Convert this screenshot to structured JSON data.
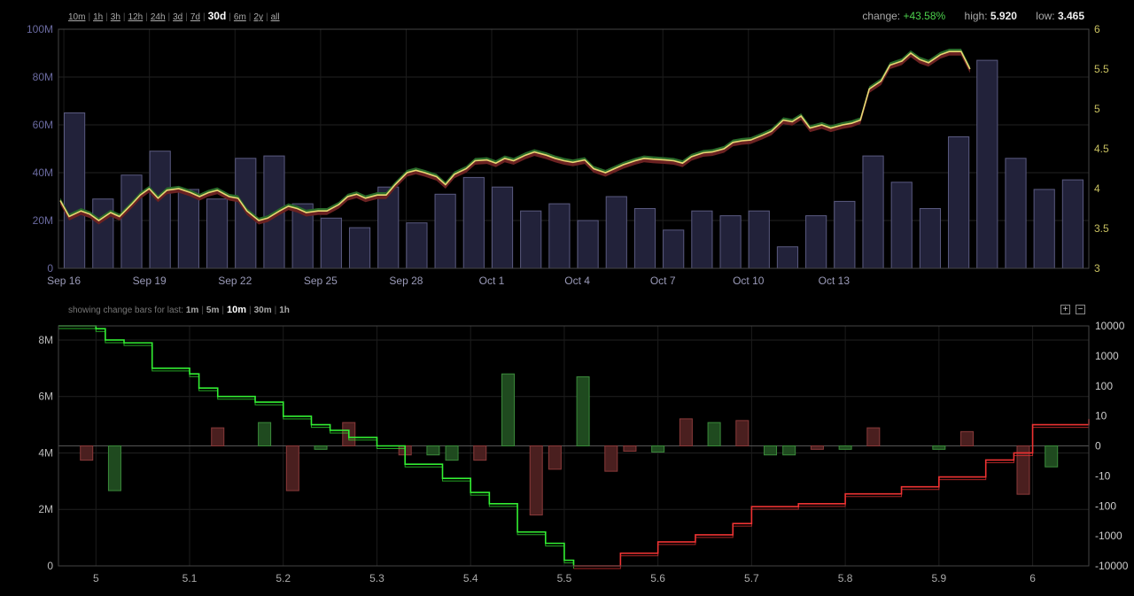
{
  "range_selector": {
    "options": [
      "10m",
      "1h",
      "3h",
      "12h",
      "24h",
      "3d",
      "7d",
      "30d",
      "6m",
      "2y",
      "all"
    ],
    "active": "30d"
  },
  "stats": {
    "change_label": "change:",
    "change_value": "+43.58%",
    "high_label": "high:",
    "high_value": "5.920",
    "low_label": "low:",
    "low_value": "3.465"
  },
  "change_bars": {
    "label": "showing change bars for last:",
    "options": [
      "1m",
      "5m",
      "10m",
      "30m",
      "1h"
    ],
    "active": "10m"
  },
  "zoom": {
    "in_label": "+",
    "out_label": "−"
  },
  "colors": {
    "up": "#2a6b2a",
    "down": "#6b2222",
    "volume_fill": "#22223a",
    "volume_stroke": "#5a5a80",
    "price_line": "#e8d874",
    "bid": "#33ee33",
    "ask": "#ee3333"
  },
  "chart_data": [
    {
      "type": "line",
      "ylim_left": [
        0,
        100
      ],
      "ylim_right": [
        3,
        6
      ],
      "yticks_left": [
        "0",
        "20M",
        "40M",
        "60M",
        "80M",
        "100M"
      ],
      "yticks_right": [
        "3",
        "3.5",
        "4",
        "4.5",
        "5",
        "5.5",
        "6"
      ],
      "xticks": [
        {
          "label": "Sep 16",
          "day": 0
        },
        {
          "label": "Sep 19",
          "day": 3
        },
        {
          "label": "Sep 22",
          "day": 6
        },
        {
          "label": "Sep 25",
          "day": 9
        },
        {
          "label": "Sep 28",
          "day": 12
        },
        {
          "label": "Oct 1",
          "day": 15
        },
        {
          "label": "Oct 4",
          "day": 18
        },
        {
          "label": "Oct 7",
          "day": 21
        },
        {
          "label": "Oct 10",
          "day": 24
        },
        {
          "label": "Oct 13",
          "day": 27
        }
      ],
      "volume_M": [
        65,
        29,
        39,
        49,
        33,
        29,
        46,
        47,
        27,
        21,
        17,
        34,
        19,
        31,
        38,
        34,
        24,
        27,
        20,
        30,
        25,
        16,
        24,
        22,
        24,
        9,
        22,
        28,
        47,
        36,
        25,
        55,
        87,
        46,
        33,
        37
      ],
      "price": [
        [
          0,
          3.85
        ],
        [
          0.3,
          3.65
        ],
        [
          0.7,
          3.72
        ],
        [
          1,
          3.68
        ],
        [
          1.3,
          3.6
        ],
        [
          1.7,
          3.7
        ],
        [
          2,
          3.65
        ],
        [
          2.4,
          3.8
        ],
        [
          2.7,
          3.92
        ],
        [
          3,
          4.0
        ],
        [
          3.3,
          3.88
        ],
        [
          3.6,
          3.98
        ],
        [
          4,
          4.0
        ],
        [
          4.4,
          3.95
        ],
        [
          4.7,
          3.9
        ],
        [
          5,
          3.95
        ],
        [
          5.3,
          3.98
        ],
        [
          5.7,
          3.9
        ],
        [
          6,
          3.88
        ],
        [
          6.3,
          3.72
        ],
        [
          6.7,
          3.6
        ],
        [
          7,
          3.63
        ],
        [
          7.4,
          3.72
        ],
        [
          7.7,
          3.78
        ],
        [
          8,
          3.75
        ],
        [
          8.3,
          3.7
        ],
        [
          8.7,
          3.72
        ],
        [
          9,
          3.72
        ],
        [
          9.4,
          3.8
        ],
        [
          9.7,
          3.9
        ],
        [
          10,
          3.93
        ],
        [
          10.3,
          3.88
        ],
        [
          10.7,
          3.92
        ],
        [
          11,
          3.92
        ],
        [
          11.3,
          4.05
        ],
        [
          11.7,
          4.2
        ],
        [
          12,
          4.23
        ],
        [
          12.3,
          4.2
        ],
        [
          12.7,
          4.15
        ],
        [
          13,
          4.05
        ],
        [
          13.3,
          4.18
        ],
        [
          13.7,
          4.25
        ],
        [
          14,
          4.35
        ],
        [
          14.4,
          4.36
        ],
        [
          14.7,
          4.32
        ],
        [
          15,
          4.38
        ],
        [
          15.3,
          4.35
        ],
        [
          15.7,
          4.42
        ],
        [
          16,
          4.46
        ],
        [
          16.4,
          4.42
        ],
        [
          16.7,
          4.38
        ],
        [
          17,
          4.35
        ],
        [
          17.3,
          4.33
        ],
        [
          17.7,
          4.36
        ],
        [
          18,
          4.25
        ],
        [
          18.4,
          4.2
        ],
        [
          18.7,
          4.25
        ],
        [
          19,
          4.3
        ],
        [
          19.4,
          4.35
        ],
        [
          19.7,
          4.38
        ],
        [
          20,
          4.37
        ],
        [
          20.4,
          4.36
        ],
        [
          20.7,
          4.35
        ],
        [
          21,
          4.32
        ],
        [
          21.3,
          4.4
        ],
        [
          21.7,
          4.45
        ],
        [
          22,
          4.46
        ],
        [
          22.4,
          4.5
        ],
        [
          22.7,
          4.58
        ],
        [
          23,
          4.6
        ],
        [
          23.3,
          4.61
        ],
        [
          23.7,
          4.67
        ],
        [
          24,
          4.72
        ],
        [
          24.4,
          4.86
        ],
        [
          24.7,
          4.84
        ],
        [
          25,
          4.91
        ],
        [
          25.3,
          4.76
        ],
        [
          25.7,
          4.8
        ],
        [
          26,
          4.76
        ],
        [
          26.4,
          4.8
        ],
        [
          26.7,
          4.82
        ],
        [
          27,
          4.86
        ],
        [
          27.3,
          5.25
        ],
        [
          27.7,
          5.35
        ],
        [
          28,
          5.55
        ],
        [
          28.4,
          5.6
        ],
        [
          28.7,
          5.7
        ],
        [
          29,
          5.62
        ],
        [
          29.3,
          5.58
        ],
        [
          29.7,
          5.68
        ],
        [
          30,
          5.72
        ],
        [
          30.4,
          5.72
        ],
        [
          30.7,
          5.5
        ]
      ]
    },
    {
      "type": "bar",
      "xlim": [
        4.96,
        6.06
      ],
      "xticks": [
        5,
        5.1,
        5.2,
        5.3,
        5.4,
        5.5,
        5.6,
        5.7,
        5.8,
        5.9,
        6
      ],
      "ylim_left": [
        0,
        8.5
      ],
      "yticks_left": [
        "0",
        "2M",
        "4M",
        "6M",
        "8M"
      ],
      "yticks_right": [
        "-10000",
        "-1000",
        "-100",
        "-10",
        "0",
        "10",
        "100",
        "1000",
        "10000"
      ],
      "bars": [
        {
          "x": 4.99,
          "change": -2
        },
        {
          "x": 5.02,
          "change": -30
        },
        {
          "x": 5.13,
          "change": 3
        },
        {
          "x": 5.18,
          "change": 5
        },
        {
          "x": 5.21,
          "change": -30
        },
        {
          "x": 5.24,
          "change": -0.3
        },
        {
          "x": 5.27,
          "change": 5
        },
        {
          "x": 5.33,
          "change": -1
        },
        {
          "x": 5.36,
          "change": -1
        },
        {
          "x": 5.38,
          "change": -2
        },
        {
          "x": 5.41,
          "change": -2
        },
        {
          "x": 5.44,
          "change": 250
        },
        {
          "x": 5.47,
          "change": -200
        },
        {
          "x": 5.49,
          "change": -5
        },
        {
          "x": 5.52,
          "change": 200
        },
        {
          "x": 5.55,
          "change": -6
        },
        {
          "x": 5.57,
          "change": -0.5
        },
        {
          "x": 5.6,
          "change": -0.6
        },
        {
          "x": 5.63,
          "change": 7
        },
        {
          "x": 5.66,
          "change": 5
        },
        {
          "x": 5.69,
          "change": 6
        },
        {
          "x": 5.72,
          "change": -1
        },
        {
          "x": 5.74,
          "change": -1
        },
        {
          "x": 5.77,
          "change": -0.3
        },
        {
          "x": 5.8,
          "change": -0.3
        },
        {
          "x": 5.83,
          "change": 3
        },
        {
          "x": 5.9,
          "change": -0.3
        },
        {
          "x": 5.93,
          "change": 2
        },
        {
          "x": 5.99,
          "change": -40
        },
        {
          "x": 6.02,
          "change": -4
        }
      ],
      "bid_depth_M": [
        [
          4.96,
          8.5
        ],
        [
          5.0,
          8.4
        ],
        [
          5.01,
          8.0
        ],
        [
          5.03,
          7.9
        ],
        [
          5.06,
          7.6
        ],
        [
          5.06,
          7.0
        ],
        [
          5.1,
          6.8
        ],
        [
          5.11,
          6.3
        ],
        [
          5.13,
          6.0
        ],
        [
          5.17,
          5.8
        ],
        [
          5.2,
          5.3
        ],
        [
          5.23,
          5.0
        ],
        [
          5.25,
          4.8
        ],
        [
          5.27,
          4.55
        ],
        [
          5.3,
          4.25
        ],
        [
          5.33,
          3.6
        ],
        [
          5.37,
          3.1
        ],
        [
          5.4,
          2.6
        ],
        [
          5.42,
          2.2
        ],
        [
          5.45,
          1.2
        ],
        [
          5.48,
          0.8
        ],
        [
          5.5,
          0.2
        ],
        [
          5.51,
          0
        ]
      ],
      "ask_depth_M": [
        [
          5.51,
          0
        ],
        [
          5.56,
          0.45
        ],
        [
          5.6,
          0.85
        ],
        [
          5.64,
          1.1
        ],
        [
          5.68,
          1.5
        ],
        [
          5.7,
          2.1
        ],
        [
          5.75,
          2.2
        ],
        [
          5.8,
          2.55
        ],
        [
          5.86,
          2.8
        ],
        [
          5.9,
          3.15
        ],
        [
          5.95,
          3.75
        ],
        [
          5.98,
          4.0
        ],
        [
          6.0,
          5.0
        ],
        [
          6.06,
          5.2
        ]
      ]
    }
  ]
}
